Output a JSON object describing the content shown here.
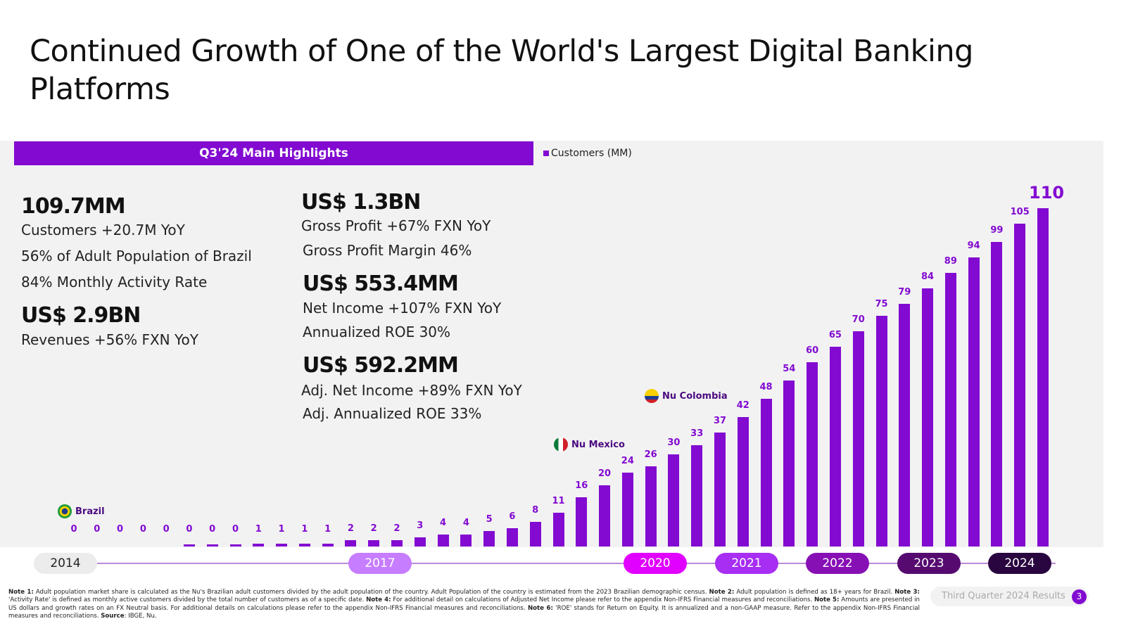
{
  "title": "Continued Growth of One of the World's Largest Digital Banking Platforms",
  "highlights": {
    "header": "Q3'24 Main Highlights",
    "left": [
      {
        "value": "109.7MM",
        "lines": [
          "Customers +20.7M YoY",
          "56% of Adult Population of Brazil",
          "84% Monthly Activity Rate"
        ]
      },
      {
        "value": "US$ 2.9BN",
        "lines": [
          "Revenues +56%  FXN YoY"
        ]
      }
    ],
    "right": [
      {
        "value": "US$ 1.3BN",
        "lines": [
          "Gross Profit +67%  FXN YoY",
          "Gross Profit Margin 46%"
        ]
      },
      {
        "value": "US$ 553.4MM",
        "lines": [
          "Net Income +107% FXN YoY",
          "Annualized ROE 30%"
        ]
      },
      {
        "value": "US$ 592.2MM",
        "lines": [
          "Adj. Net Income +89% FXN YoY",
          "Adj. Annualized ROE 33%"
        ]
      }
    ]
  },
  "chart_data": {
    "type": "bar",
    "title": "",
    "legend": [
      "Customers (MM)"
    ],
    "legend_placement": "top-left",
    "series": [
      {
        "name": "Customers (MM)",
        "color": "#820ad1",
        "values": [
          0,
          0,
          0,
          0,
          0,
          0,
          0,
          0,
          1,
          1,
          1,
          1,
          2,
          2,
          2,
          3,
          4,
          4,
          5,
          6,
          8,
          11,
          16,
          20,
          24,
          26,
          30,
          33,
          37,
          42,
          48,
          54,
          60,
          65,
          70,
          75,
          79,
          84,
          89,
          94,
          99,
          105,
          110
        ]
      }
    ],
    "timeline_labels": [
      {
        "label": "2014",
        "color": "#ececec",
        "text_color": "#222"
      },
      {
        "label": "2017",
        "color": "#c77dff",
        "text_color": "#ffffff"
      },
      {
        "label": "2020",
        "color": "#e100ff",
        "text_color": "#ffffff"
      },
      {
        "label": "2021",
        "color": "#a72ef2",
        "text_color": "#ffffff"
      },
      {
        "label": "2022",
        "color": "#8710b5",
        "text_color": "#ffffff"
      },
      {
        "label": "2023",
        "color": "#560a70",
        "text_color": "#ffffff"
      },
      {
        "label": "2024",
        "color": "#2a0640",
        "text_color": "#ffffff"
      }
    ],
    "annotations": [
      {
        "label": "Brazil",
        "flag": "brazil-flag-icon"
      },
      {
        "label": "Nu Mexico",
        "flag": "mexico-flag-icon"
      },
      {
        "label": "Nu Colombia",
        "flag": "colombia-flag-icon"
      }
    ],
    "grid": false,
    "ylim": [
      0,
      110
    ]
  },
  "notes": [
    {
      "b": "Note 1:",
      "t": " Adult population market share is calculated as the Nu's Brazilian adult customers divided by the adult population of the country. Adult Population of the country is estimated from the 2023 Brazilian demographic census. "
    },
    {
      "b": "Note 2:",
      "t": " Adult population is defined as 18+ years for Brazil. "
    },
    {
      "b": "Note 3:",
      "t": " 'Activity Rate' is defined as monthly active customers divided by the total number of customers as of a specific date. "
    },
    {
      "b": "Note 4:",
      "t": " For additional detail on calculations of Adjusted Net Income please refer to the appendix Non-IFRS Financial measures and reconciliations. "
    },
    {
      "b": "Note 5:",
      "t": " Amounts are presented in US dollars and growth rates on an FX Neutral basis. For additional details on calculations please refer to the appendix Non-IFRS Financial measures and reconciliations. "
    },
    {
      "b": "Note 6:",
      "t": " 'ROE' stands for Return on Equity. It is annualized and a non-GAAP measure. Refer to the appendix Non-IFRS Financial measures and reconciliations. "
    },
    {
      "b": "Source",
      "t": ": IBGE, Nu."
    }
  ],
  "footer": {
    "report": "Third Quarter 2024 Results",
    "page": "3"
  }
}
